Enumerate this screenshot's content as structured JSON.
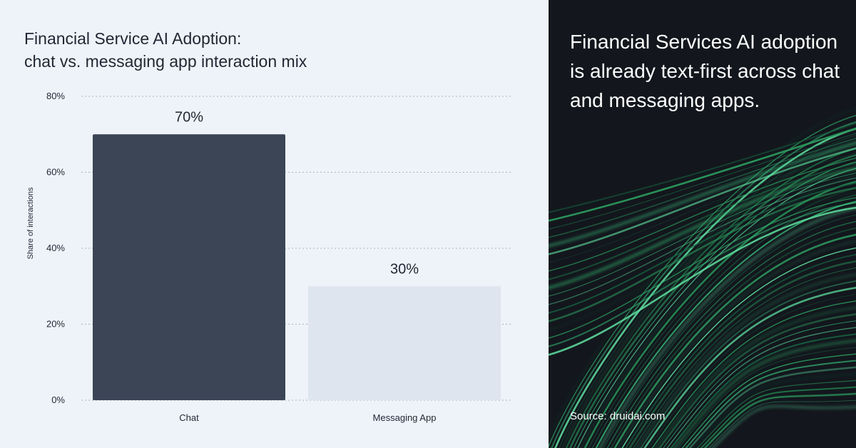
{
  "chart_data": {
    "type": "bar",
    "title": [
      "Financial Service AI Adoption:",
      "chat vs. messaging app interaction mix"
    ],
    "ylabel": "Share of interactions",
    "xlabel": "",
    "categories": [
      "Chat",
      "Messaging App"
    ],
    "values": [
      70,
      30
    ],
    "value_labels": [
      "70%",
      "30%"
    ],
    "ylim": [
      0,
      80
    ],
    "yticks": [
      0,
      20,
      40,
      60,
      80
    ],
    "ytick_labels": [
      "0%",
      "20%",
      "40%",
      "60%",
      "80%"
    ],
    "grid": true,
    "colors": {
      "Chat": "#3b4556",
      "Messaging App": "#dfe5ee"
    }
  },
  "headline": "Financial Services AI adoption is already text-first across chat and messaging apps.",
  "source": "Source: druidai.com",
  "colors": {
    "left_bg": "#eef3fa",
    "right_bg": "#13171d",
    "accent_green": "#2fc87a"
  }
}
